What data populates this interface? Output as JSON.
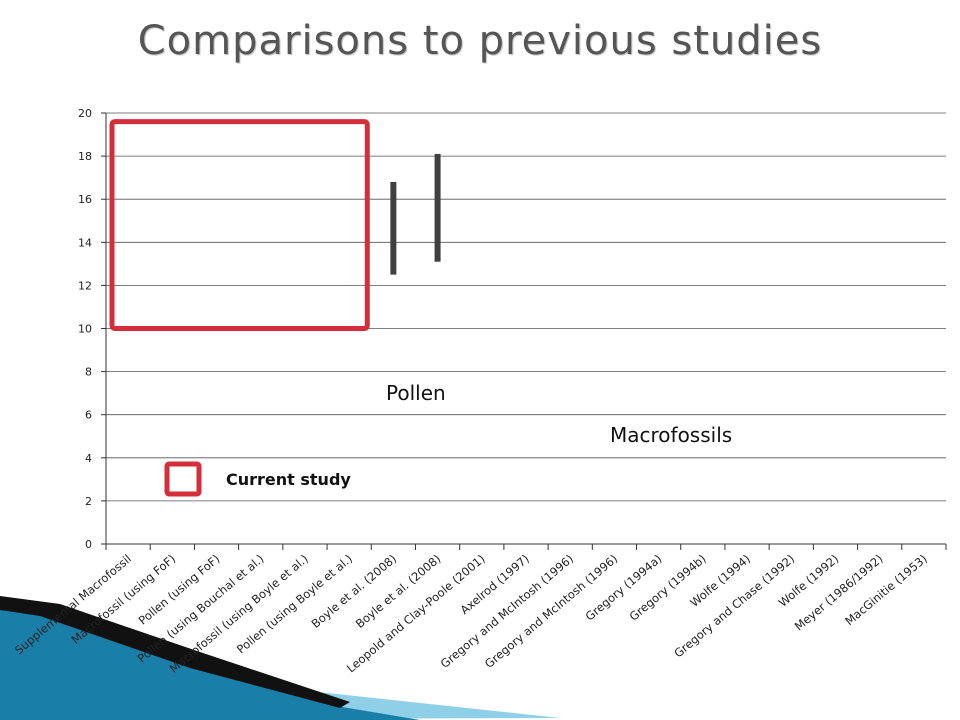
{
  "slide": {
    "title": "Comparisons to previous studies"
  },
  "colors": {
    "bar": "#404040",
    "highlight": "#d42e3a",
    "grid": "#555555",
    "title": "#555555",
    "swoosh_dark": "#111111",
    "swoosh_blue": "#1a7fa8",
    "swoosh_light": "#8fd0e8"
  },
  "annotations": {
    "pollen": "Pollen",
    "macrofossils": "Macrofossils",
    "legend_current": "Current study"
  },
  "chart_data": {
    "type": "bar",
    "subtype": "floating-range",
    "title": "",
    "xlabel": "",
    "ylabel": "",
    "ylim": [
      0,
      20
    ],
    "yticks": [
      0,
      2,
      4,
      6,
      8,
      10,
      12,
      14,
      16,
      18,
      20
    ],
    "grid": true,
    "categories": [
      "Supplemental Macrofossil",
      "Macrofossil (using FoF)",
      "Pollen (using FoF)",
      "Pollen (using Bouchal et al.)",
      "Macrofossil (using Boyle et al.)",
      "Pollen (using Boyle et al.)",
      "Boyle et al. (2008)",
      "Boyle et al. (2008)",
      "Leopold and Clay-Poole (2001)",
      "Axelrod (1997)",
      "Gregory and McIntosh (1996)",
      "Gregory and McIntosh (1996)",
      "Gregory (1994a)",
      "Gregory (1994b)",
      "Wolfe (1994)",
      "Gregory and Chase (1992)",
      "Wolfe (1992)",
      "Meyer (1986/1992)",
      "MacGinitie (1953)"
    ],
    "ranges": [
      null,
      null,
      null,
      null,
      null,
      null,
      [
        12.5,
        16.8
      ],
      [
        13.1,
        18.1
      ],
      null,
      null,
      null,
      null,
      null,
      null,
      null,
      null,
      null,
      null,
      null
    ],
    "highlight": {
      "from_category": 0,
      "to_category": 5,
      "ylim": [
        10,
        19.6
      ],
      "label": "Current study"
    }
  }
}
